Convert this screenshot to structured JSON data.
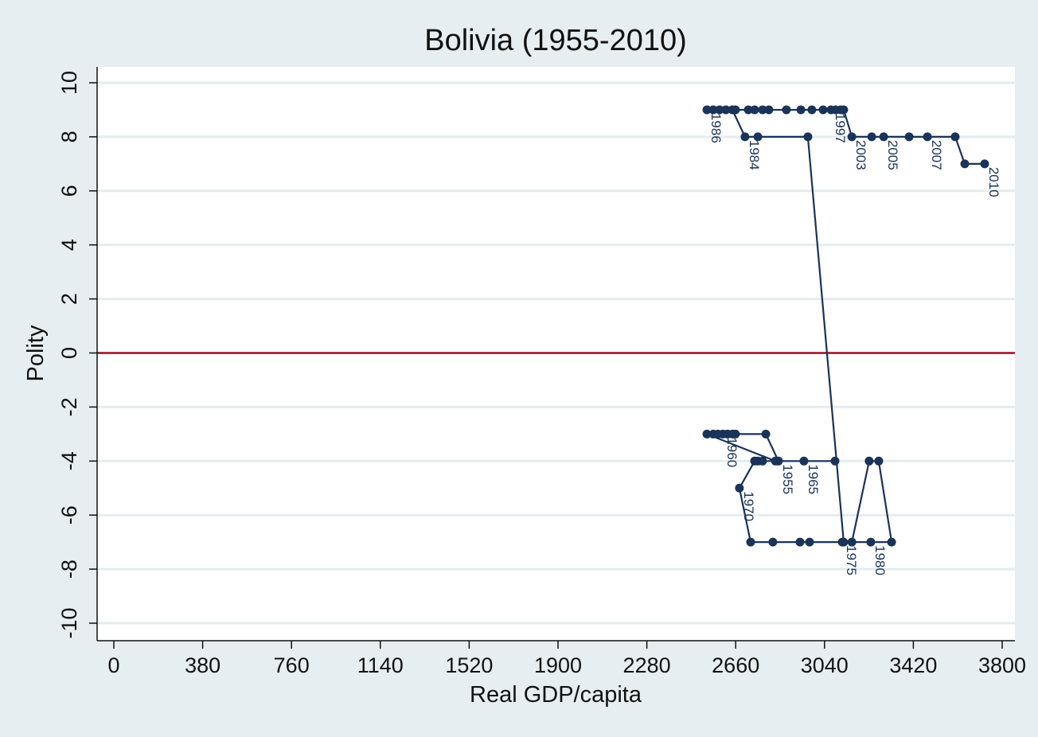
{
  "chart_data": {
    "type": "line",
    "title": "Bolivia (1955-2010)",
    "xlabel": "Real GDP/capita",
    "ylabel": "Polity",
    "xlim": [
      0,
      3800
    ],
    "ylim": [
      -10,
      10
    ],
    "xticks": [
      0,
      380,
      760,
      1140,
      1520,
      1900,
      2280,
      2660,
      3040,
      3420,
      3800
    ],
    "yticks": [
      -10,
      -8,
      -6,
      -4,
      -2,
      0,
      2,
      4,
      6,
      8,
      10
    ],
    "grid": true,
    "reference_line": {
      "y": 0,
      "color": "#a0102a"
    },
    "series_color": "#1a3358",
    "points": [
      {
        "year": 1955,
        "x": 2843,
        "y": -4,
        "label": "1955"
      },
      {
        "year": 1956,
        "x": 2789,
        "y": -3
      },
      {
        "year": 1957,
        "x": 2659,
        "y": -3
      },
      {
        "year": 1958,
        "x": 2646,
        "y": -3
      },
      {
        "year": 1959,
        "x": 2625,
        "y": -3
      },
      {
        "year": 1960,
        "x": 2605,
        "y": -3,
        "label": "1960"
      },
      {
        "year": 1961,
        "x": 2584,
        "y": -3
      },
      {
        "year": 1962,
        "x": 2564,
        "y": -3
      },
      {
        "year": 1963,
        "x": 2537,
        "y": -3
      },
      {
        "year": 1964,
        "x": 2830,
        "y": -4
      },
      {
        "year": 1965,
        "x": 2952,
        "y": -4,
        "label": "1965"
      },
      {
        "year": 1966,
        "x": 3085,
        "y": -4
      },
      {
        "year": 1967,
        "x": 2775,
        "y": -4
      },
      {
        "year": 1968,
        "x": 2755,
        "y": -4
      },
      {
        "year": 1969,
        "x": 2741,
        "y": -4
      },
      {
        "year": 1970,
        "x": 2676,
        "y": -5,
        "label": "1970"
      },
      {
        "year": 1971,
        "x": 2724,
        "y": -7
      },
      {
        "year": 1972,
        "x": 2819,
        "y": -7
      },
      {
        "year": 1973,
        "x": 2935,
        "y": -7
      },
      {
        "year": 1974,
        "x": 2976,
        "y": -7
      },
      {
        "year": 1975,
        "x": 3116,
        "y": -7,
        "label": "1975"
      },
      {
        "year": 1976,
        "x": 3157,
        "y": -7
      },
      {
        "year": 1977,
        "x": 3231,
        "y": -4
      },
      {
        "year": 1978,
        "x": 3272,
        "y": -4
      },
      {
        "year": 1979,
        "x": 3327,
        "y": -7
      },
      {
        "year": 1980,
        "x": 3238,
        "y": -7,
        "label": "1980"
      },
      {
        "year": 1981,
        "x": 3122,
        "y": -7
      },
      {
        "year": 1982,
        "x": 2969,
        "y": 8
      },
      {
        "year": 1983,
        "x": 2755,
        "y": 8
      },
      {
        "year": 1984,
        "x": 2700,
        "y": 8,
        "label": "1984"
      },
      {
        "year": 1985,
        "x": 2646,
        "y": 9
      },
      {
        "year": 1986,
        "x": 2537,
        "y": 9,
        "label": "1986"
      },
      {
        "year": 1987,
        "x": 2564,
        "y": 9
      },
      {
        "year": 1988,
        "x": 2591,
        "y": 9
      },
      {
        "year": 1989,
        "x": 2618,
        "y": 9
      },
      {
        "year": 1990,
        "x": 2659,
        "y": 9
      },
      {
        "year": 1991,
        "x": 2714,
        "y": 9
      },
      {
        "year": 1992,
        "x": 2741,
        "y": 9
      },
      {
        "year": 1993,
        "x": 2775,
        "y": 9
      },
      {
        "year": 1994,
        "x": 2802,
        "y": 9
      },
      {
        "year": 1995,
        "x": 2877,
        "y": 9
      },
      {
        "year": 1996,
        "x": 2939,
        "y": 9
      },
      {
        "year": 1997,
        "x": 3068,
        "y": 9,
        "label": "1997"
      },
      {
        "year": 1998,
        "x": 3034,
        "y": 9
      },
      {
        "year": 1999,
        "x": 2986,
        "y": 9
      },
      {
        "year": 2000,
        "x": 3088,
        "y": 9
      },
      {
        "year": 2001,
        "x": 3109,
        "y": 9
      },
      {
        "year": 2002,
        "x": 3122,
        "y": 9
      },
      {
        "year": 2003,
        "x": 3157,
        "y": 8,
        "label": "2003"
      },
      {
        "year": 2004,
        "x": 3242,
        "y": 8
      },
      {
        "year": 2005,
        "x": 3293,
        "y": 8,
        "label": "2005"
      },
      {
        "year": 2006,
        "x": 3402,
        "y": 8
      },
      {
        "year": 2007,
        "x": 3480,
        "y": 8,
        "label": "2007"
      },
      {
        "year": 2008,
        "x": 3599,
        "y": 8
      },
      {
        "year": 2009,
        "x": 3640,
        "y": 7
      },
      {
        "year": 2010,
        "x": 3725,
        "y": 7,
        "label": "2010"
      }
    ]
  }
}
